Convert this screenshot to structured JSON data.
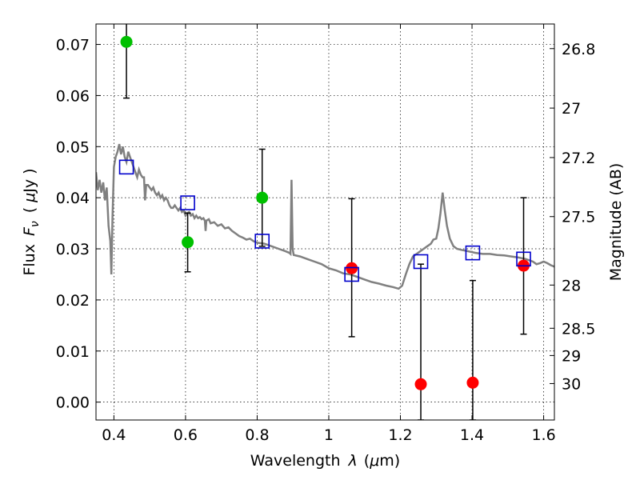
{
  "chart_data": {
    "type": "scatter",
    "xlabel": "Wavelength",
    "xlabel_symbol": "λ",
    "xlabel_unit_open": "(",
    "xlabel_unit_mu": "μ",
    "xlabel_unit_rest": "m)",
    "ylabel": "Flux",
    "ylabel_symbol": "F",
    "ylabel_sub": "ν",
    "ylabel_unit_open": "(",
    "ylabel_unit_mu": "μ",
    "ylabel_unit_rest": "Jy )",
    "y2label": "Magnitude (AB)",
    "xlim": [
      0.35,
      1.63
    ],
    "ylim": [
      -0.0035,
      0.074
    ],
    "grid": true,
    "x_ticks": [
      0.4,
      0.6,
      0.8,
      1.0,
      1.2,
      1.4,
      1.6
    ],
    "x_tick_labels": [
      "0.4",
      "0.6",
      "0.8",
      "1",
      "1.2",
      "1.4",
      "1.6"
    ],
    "y_ticks": [
      0.0,
      0.01,
      0.02,
      0.03,
      0.04,
      0.05,
      0.06,
      0.07
    ],
    "y_tick_labels": [
      "0.00",
      "0.01",
      "0.02",
      "0.03",
      "0.04",
      "0.05",
      "0.06",
      "0.07"
    ],
    "y2_ticks": [
      {
        "mag": 26.8,
        "label": "26.8"
      },
      {
        "mag": 27,
        "label": "27"
      },
      {
        "mag": 27.2,
        "label": "27.2"
      },
      {
        "mag": 27.5,
        "label": "27.5"
      },
      {
        "mag": 28,
        "label": "28"
      },
      {
        "mag": 28.5,
        "label": "28.5"
      },
      {
        "mag": 29,
        "label": "29"
      },
      {
        "mag": 30,
        "label": "30"
      }
    ],
    "colors": {
      "green_points": "#00c000",
      "red_points": "#ff0000",
      "model_squares": "#0000cc",
      "template": "#808080",
      "errorbar": "#000000"
    },
    "series": [
      {
        "marker": "circle",
        "color": "#00c000",
        "points": [
          {
            "x": 0.435,
            "y": 0.0705,
            "err_low": 0.0595,
            "err_high": 0.0755
          },
          {
            "x": 0.606,
            "y": 0.0313,
            "err_low": 0.0255,
            "err_high": 0.037
          },
          {
            "x": 0.814,
            "y": 0.04,
            "err_low": 0.0305,
            "err_high": 0.0495
          }
        ]
      },
      {
        "marker": "circle",
        "color": "#ff0000",
        "points": [
          {
            "x": 1.064,
            "y": 0.0262,
            "err_low": 0.0128,
            "err_high": 0.0398
          },
          {
            "x": 1.257,
            "y": 0.0035,
            "err_low": -0.0035,
            "err_high": 0.027
          },
          {
            "x": 1.402,
            "y": 0.0038,
            "err_low": -0.0035,
            "err_high": 0.0238
          },
          {
            "x": 1.544,
            "y": 0.0267,
            "err_low": 0.0133,
            "err_high": 0.04
          }
        ]
      },
      {
        "marker": "square",
        "color": "#0000cc",
        "points": [
          {
            "x": 0.435,
            "y": 0.046
          },
          {
            "x": 0.606,
            "y": 0.039
          },
          {
            "x": 0.814,
            "y": 0.0315
          },
          {
            "x": 1.064,
            "y": 0.025
          },
          {
            "x": 1.257,
            "y": 0.0275
          },
          {
            "x": 1.402,
            "y": 0.0292
          },
          {
            "x": 1.544,
            "y": 0.028
          }
        ]
      },
      {
        "marker": "line",
        "color": "#808080",
        "points": [
          [
            0.35,
            0.045
          ],
          [
            0.355,
            0.0415
          ],
          [
            0.36,
            0.0435
          ],
          [
            0.365,
            0.041
          ],
          [
            0.37,
            0.043
          ],
          [
            0.375,
            0.0395
          ],
          [
            0.38,
            0.042
          ],
          [
            0.385,
            0.0345
          ],
          [
            0.39,
            0.0315
          ],
          [
            0.393,
            0.025
          ],
          [
            0.396,
            0.036
          ],
          [
            0.4,
            0.046
          ],
          [
            0.405,
            0.048
          ],
          [
            0.41,
            0.049
          ],
          [
            0.415,
            0.0505
          ],
          [
            0.42,
            0.0485
          ],
          [
            0.425,
            0.05
          ],
          [
            0.43,
            0.048
          ],
          [
            0.435,
            0.047
          ],
          [
            0.44,
            0.049
          ],
          [
            0.445,
            0.048
          ],
          [
            0.45,
            0.047
          ],
          [
            0.455,
            0.046
          ],
          [
            0.46,
            0.045
          ],
          [
            0.465,
            0.044
          ],
          [
            0.47,
            0.0455
          ],
          [
            0.475,
            0.0445
          ],
          [
            0.48,
            0.044
          ],
          [
            0.484,
            0.044
          ],
          [
            0.487,
            0.0395
          ],
          [
            0.49,
            0.0425
          ],
          [
            0.495,
            0.0425
          ],
          [
            0.5,
            0.042
          ],
          [
            0.505,
            0.0415
          ],
          [
            0.51,
            0.042
          ],
          [
            0.515,
            0.041
          ],
          [
            0.52,
            0.0405
          ],
          [
            0.525,
            0.041
          ],
          [
            0.53,
            0.04
          ],
          [
            0.535,
            0.0405
          ],
          [
            0.54,
            0.0395
          ],
          [
            0.545,
            0.04
          ],
          [
            0.55,
            0.0395
          ],
          [
            0.555,
            0.0385
          ],
          [
            0.56,
            0.038
          ],
          [
            0.565,
            0.038
          ],
          [
            0.57,
            0.0385
          ],
          [
            0.575,
            0.038
          ],
          [
            0.58,
            0.0375
          ],
          [
            0.585,
            0.038
          ],
          [
            0.59,
            0.0372
          ],
          [
            0.595,
            0.0375
          ],
          [
            0.6,
            0.0365
          ],
          [
            0.605,
            0.037
          ],
          [
            0.61,
            0.0372
          ],
          [
            0.615,
            0.0365
          ],
          [
            0.62,
            0.0368
          ],
          [
            0.625,
            0.036
          ],
          [
            0.63,
            0.0365
          ],
          [
            0.635,
            0.036
          ],
          [
            0.64,
            0.0362
          ],
          [
            0.645,
            0.0358
          ],
          [
            0.65,
            0.036
          ],
          [
            0.654,
            0.0355
          ],
          [
            0.656,
            0.0335
          ],
          [
            0.658,
            0.0355
          ],
          [
            0.665,
            0.0358
          ],
          [
            0.67,
            0.035
          ],
          [
            0.68,
            0.0352
          ],
          [
            0.69,
            0.0345
          ],
          [
            0.7,
            0.0348
          ],
          [
            0.71,
            0.034
          ],
          [
            0.72,
            0.0342
          ],
          [
            0.73,
            0.0335
          ],
          [
            0.74,
            0.033
          ],
          [
            0.75,
            0.0325
          ],
          [
            0.76,
            0.0322
          ],
          [
            0.77,
            0.0318
          ],
          [
            0.78,
            0.032
          ],
          [
            0.79,
            0.0315
          ],
          [
            0.8,
            0.0312
          ],
          [
            0.82,
            0.031
          ],
          [
            0.84,
            0.0305
          ],
          [
            0.86,
            0.03
          ],
          [
            0.88,
            0.0295
          ],
          [
            0.89,
            0.0292
          ],
          [
            0.893,
            0.029
          ],
          [
            0.896,
            0.0435
          ],
          [
            0.899,
            0.03
          ],
          [
            0.902,
            0.0288
          ],
          [
            0.92,
            0.0285
          ],
          [
            0.94,
            0.028
          ],
          [
            0.96,
            0.0275
          ],
          [
            0.98,
            0.027
          ],
          [
            1.0,
            0.0262
          ],
          [
            1.02,
            0.0258
          ],
          [
            1.04,
            0.0252
          ],
          [
            1.06,
            0.025
          ],
          [
            1.08,
            0.0245
          ],
          [
            1.1,
            0.024
          ],
          [
            1.12,
            0.0235
          ],
          [
            1.14,
            0.0232
          ],
          [
            1.16,
            0.0228
          ],
          [
            1.18,
            0.0225
          ],
          [
            1.195,
            0.0222
          ],
          [
            1.205,
            0.0228
          ],
          [
            1.215,
            0.025
          ],
          [
            1.225,
            0.027
          ],
          [
            1.235,
            0.0285
          ],
          [
            1.245,
            0.029
          ],
          [
            1.255,
            0.0295
          ],
          [
            1.265,
            0.03
          ],
          [
            1.275,
            0.0305
          ],
          [
            1.285,
            0.031
          ],
          [
            1.292,
            0.0318
          ],
          [
            1.3,
            0.032
          ],
          [
            1.306,
            0.034
          ],
          [
            1.312,
            0.037
          ],
          [
            1.318,
            0.041
          ],
          [
            1.324,
            0.0375
          ],
          [
            1.33,
            0.0345
          ],
          [
            1.338,
            0.032
          ],
          [
            1.348,
            0.0305
          ],
          [
            1.358,
            0.03
          ],
          [
            1.37,
            0.0298
          ],
          [
            1.39,
            0.0295
          ],
          [
            1.41,
            0.0292
          ],
          [
            1.43,
            0.029
          ],
          [
            1.45,
            0.029
          ],
          [
            1.47,
            0.0288
          ],
          [
            1.49,
            0.0287
          ],
          [
            1.51,
            0.0285
          ],
          [
            1.53,
            0.0283
          ],
          [
            1.55,
            0.028
          ],
          [
            1.57,
            0.0275
          ],
          [
            1.58,
            0.027
          ],
          [
            1.59,
            0.0272
          ],
          [
            1.6,
            0.0275
          ],
          [
            1.61,
            0.0272
          ],
          [
            1.62,
            0.0268
          ],
          [
            1.63,
            0.0265
          ]
        ]
      }
    ]
  }
}
